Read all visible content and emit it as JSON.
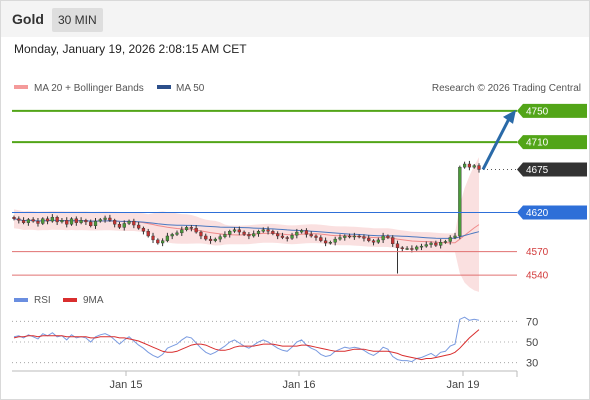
{
  "header": {
    "symbol": "Gold",
    "period": "30 MIN",
    "datetime": "Monday, January 19, 2026 2:08:15 AM CET"
  },
  "legend": {
    "bb_label": "MA 20 + Bollinger Bands",
    "ma50_label": "MA 50",
    "credit": "Research © 2026 Trading Central",
    "rsi_label": "RSI",
    "rsi_ma_label": "9MA"
  },
  "colors": {
    "up_target": "#52a518",
    "current": "#333333",
    "pivot": "#2e6fd8",
    "support": "#e07070",
    "arrow": "#2a6aa8",
    "bollinger": "#f6c6c6",
    "ma50": "#4a78c0",
    "rsi": "#7a9be0",
    "rsi_ma": "#d92e2e"
  },
  "chart_data": {
    "type": "candlestick",
    "x_tick_labels": [
      "Jan 15",
      "Jan 16",
      "Jan 19"
    ],
    "price_levels": [
      {
        "value": 4750,
        "label": "4750",
        "kind": "target"
      },
      {
        "value": 4710,
        "label": "4710",
        "kind": "target"
      },
      {
        "value": 4675,
        "label": "4675",
        "kind": "current"
      },
      {
        "value": 4620,
        "label": "4620",
        "kind": "pivot"
      },
      {
        "value": 4570,
        "label": "4570",
        "kind": "support"
      },
      {
        "value": 4540,
        "label": "4540",
        "kind": "support"
      }
    ],
    "price_ylim": [
      4535,
      4760
    ],
    "price_series": [
      4612,
      4610,
      4607,
      4611,
      4609,
      4606,
      4612,
      4609,
      4614,
      4608,
      4610,
      4605,
      4612,
      4607,
      4610,
      4608,
      4603,
      4609,
      4611,
      4613,
      4610,
      4605,
      4601,
      4606,
      4609,
      4604,
      4600,
      4596,
      4590,
      4585,
      4581,
      4584,
      4590,
      4592,
      4594,
      4598,
      4601,
      4600,
      4595,
      4590,
      4586,
      4584,
      4586,
      4589,
      4592,
      4596,
      4598,
      4595,
      4592,
      4590,
      4593,
      4596,
      4598,
      4596,
      4593,
      4590,
      4588,
      4587,
      4591,
      4595,
      4597,
      4592,
      4590,
      4588,
      4584,
      4581,
      4582,
      4586,
      4588,
      4590,
      4589,
      4590,
      4589,
      4587,
      4584,
      4582,
      4585,
      4590,
      4588,
      4580,
      4575,
      4574,
      4574,
      4573,
      4576,
      4577,
      4579,
      4581,
      4578,
      4582,
      4583,
      4588,
      4590,
      4678,
      4682,
      4678,
      4680,
      4675
    ],
    "rsi": {
      "ylim": [
        20,
        80
      ],
      "ticks": [
        70,
        50,
        30
      ],
      "values": [
        55,
        56,
        54,
        57,
        55,
        53,
        58,
        56,
        59,
        55,
        56,
        52,
        57,
        54,
        55,
        54,
        50,
        55,
        57,
        58,
        56,
        52,
        48,
        52,
        55,
        51,
        47,
        44,
        40,
        37,
        35,
        38,
        44,
        46,
        48,
        52,
        55,
        54,
        49,
        44,
        40,
        38,
        40,
        43,
        46,
        50,
        52,
        49,
        46,
        44,
        47,
        50,
        52,
        50,
        47,
        44,
        42,
        41,
        45,
        50,
        52,
        47,
        44,
        42,
        38,
        36,
        37,
        41,
        43,
        45,
        44,
        45,
        44,
        42,
        39,
        37,
        40,
        45,
        43,
        36,
        33,
        32,
        32,
        31,
        34,
        35,
        37,
        39,
        36,
        40,
        41,
        46,
        48,
        72,
        74,
        71,
        72,
        71
      ],
      "ma_values": [
        54,
        55,
        55,
        56,
        56,
        55,
        56,
        56,
        56,
        56,
        56,
        55,
        55,
        55,
        55,
        55,
        54,
        54,
        55,
        55,
        55,
        55,
        54,
        54,
        53,
        52,
        51,
        49,
        47,
        45,
        43,
        41,
        40,
        40,
        41,
        43,
        45,
        47,
        48,
        48,
        47,
        45,
        43,
        42,
        42,
        43,
        45,
        46,
        46,
        46,
        46,
        47,
        48,
        48,
        48,
        47,
        46,
        46,
        46,
        46,
        47,
        47,
        46,
        45,
        44,
        43,
        42,
        41,
        41,
        41,
        42,
        43,
        43,
        43,
        42,
        41,
        41,
        41,
        41,
        40,
        39,
        37,
        36,
        35,
        34,
        33,
        34,
        34,
        35,
        36,
        37,
        38,
        40,
        44,
        49,
        54,
        58,
        62
      ]
    }
  }
}
